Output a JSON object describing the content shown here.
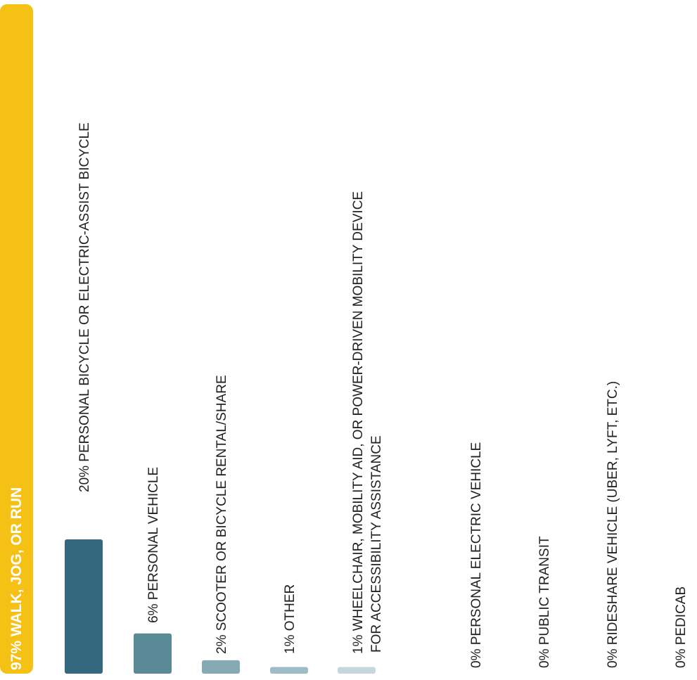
{
  "chart_data": {
    "type": "bar",
    "orientation": "vertical-bars-rotated-labels",
    "categories": [
      "WALK, JOG, OR RUN",
      "PERSONAL BICYCLE OR ELECTRIC-ASSIST BICYCLE",
      "PERSONAL VEHICLE",
      "SCOOTER OR BICYCLE RENTAL/SHARE",
      "OTHER",
      "WHEELCHAIR, MOBILITY AID, OR POWER-DRIVEN MOBILITY DEVICE FOR ACCESSIBILITY ASSISTANCE",
      "PERSONAL ELECTRIC VEHICLE",
      "PUBLIC TRANSIT",
      "RIDESHARE VEHICLE (UBER, LYFT, ETC.)",
      "PEDICAB"
    ],
    "labels": [
      [
        "97% WALK, JOG, OR RUN"
      ],
      [
        "20% PERSONAL BICYCLE OR ELECTRIC-ASSIST BICYCLE"
      ],
      [
        "6% PERSONAL VEHICLE"
      ],
      [
        "2% SCOOTER OR BICYCLE RENTAL/SHARE"
      ],
      [
        "1% OTHER"
      ],
      [
        "1% WHEELCHAIR, MOBILITY AID, OR POWER-DRIVEN MOBILITY DEVICE",
        "FOR ACCESSIBILITY ASSISTANCE"
      ],
      [
        "0% PERSONAL ELECTRIC VEHICLE"
      ],
      [
        "0% PUBLIC TRANSIT"
      ],
      [
        "0% RIDESHARE VEHICLE (UBER, LYFT, ETC.)"
      ],
      [
        "0% PEDICAB"
      ]
    ],
    "values": [
      97,
      20,
      6,
      2,
      1,
      1,
      0,
      0,
      0,
      0
    ],
    "colors": [
      "#f5c115",
      "#34687f",
      "#5b8a97",
      "#86aab5",
      "#9fbcc6",
      "#c6d7dc",
      "#c6d7dc",
      "#c6d7dc",
      "#c6d7dc",
      "#c6d7dc"
    ],
    "ylim": [
      0,
      100
    ],
    "grid": false,
    "legend": "none"
  }
}
